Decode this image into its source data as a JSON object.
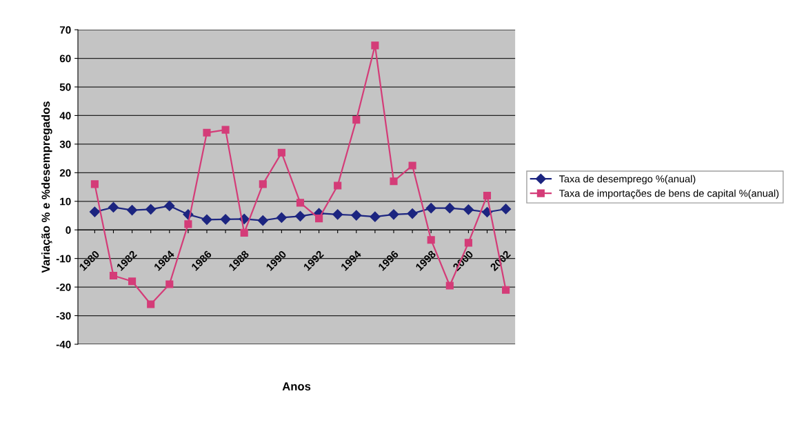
{
  "chart_data": {
    "type": "line",
    "xlabel": "Anos",
    "ylabel": "Variação % e %desempregados",
    "categories": [
      "1980",
      null,
      "1982",
      null,
      "1984",
      null,
      "1986",
      null,
      "1988",
      null,
      "1990",
      null,
      "1992",
      null,
      "1994",
      null,
      "1996",
      null,
      "1998",
      null,
      "2000",
      null,
      "2002"
    ],
    "series": [
      {
        "name": "Taxa de desemprego %(anual)",
        "color": "#1c2580",
        "marker": "diamond",
        "values": [
          6.3,
          7.9,
          6.9,
          7.2,
          8.4,
          5.4,
          3.6,
          3.7,
          3.8,
          3.3,
          4.3,
          4.8,
          5.8,
          5.4,
          5.1,
          4.6,
          5.4,
          5.7,
          7.6,
          7.6,
          7.1,
          6.2,
          7.3
        ]
      },
      {
        "name": "Taxa de importações de bens de capital %(anual)",
        "color": "#d43c78",
        "marker": "square",
        "values": [
          16,
          -16,
          -18,
          -26,
          -19,
          2,
          34,
          35,
          -1,
          16,
          27,
          9.5,
          4,
          15.5,
          38.5,
          64.5,
          17,
          22.5,
          -3.5,
          -19.5,
          -4.5,
          12,
          -21
        ]
      }
    ],
    "ylim": [
      -40,
      70
    ],
    "yticks": [
      -40,
      -30,
      -20,
      -10,
      0,
      10,
      20,
      30,
      40,
      50,
      60,
      70
    ],
    "grid": "y",
    "legend": "right"
  }
}
